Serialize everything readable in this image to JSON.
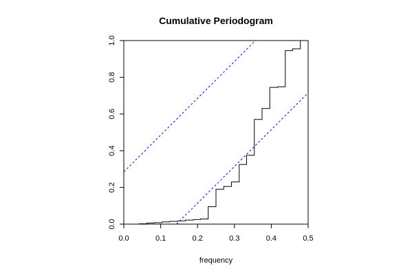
{
  "chart_data": {
    "type": "line",
    "title": "Cumulative Periodogram",
    "xlabel": "frequency",
    "ylabel": "",
    "xlim": [
      0,
      0.5
    ],
    "ylim": [
      0,
      1
    ],
    "x_ticks": [
      "0.0",
      "0.1",
      "0.2",
      "0.3",
      "0.4",
      "0.5"
    ],
    "y_ticks": [
      "0.0",
      "0.2",
      "0.4",
      "0.6",
      "0.8",
      "1.0"
    ],
    "grid": false,
    "series": [
      {
        "kind": "step",
        "color": "#000000",
        "x": [
          0.0,
          0.042,
          0.063,
          0.083,
          0.104,
          0.125,
          0.146,
          0.167,
          0.188,
          0.208,
          0.229,
          0.25,
          0.271,
          0.292,
          0.313,
          0.333,
          0.354,
          0.375,
          0.396,
          0.417,
          0.438,
          0.458,
          0.479
        ],
        "y": [
          0.0,
          0.002,
          0.006,
          0.008,
          0.012,
          0.015,
          0.018,
          0.022,
          0.025,
          0.028,
          0.095,
          0.19,
          0.205,
          0.23,
          0.325,
          0.375,
          0.57,
          0.63,
          0.745,
          0.748,
          0.945,
          0.955,
          1.0
        ]
      },
      {
        "kind": "dashed",
        "color": "#0000ff",
        "x": [
          0.0,
          0.357
        ],
        "y": [
          0.285,
          1.0
        ]
      },
      {
        "kind": "dashed",
        "color": "#0000ff",
        "x": [
          0.143,
          0.5
        ],
        "y": [
          0.0,
          0.715
        ]
      }
    ]
  }
}
